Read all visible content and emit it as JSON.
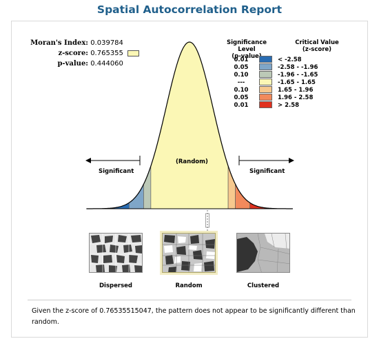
{
  "report": {
    "title": "Spatial Autocorrelation Report",
    "stats": [
      {
        "label": "Moran's Index:",
        "value": "0.039784"
      },
      {
        "label": "z-score:",
        "value": "0.765355"
      },
      {
        "label": "p-value:",
        "value": "0.444060"
      }
    ],
    "summary": "Given the z-score of 0.76535515047, the pattern does not appear to be significantly different than random."
  },
  "legend": {
    "sig_header_line1": "Significance Level",
    "sig_header_line2": "(p-value)",
    "cv_header_line1": "Critical Value",
    "cv_header_line2": "(z-score)",
    "rows": [
      {
        "p": "0.01",
        "cv": "< -2.58",
        "color": "#2a6db3"
      },
      {
        "p": "0.05",
        "cv": "-2.58 - -1.96",
        "color": "#7fa6c8"
      },
      {
        "p": "0.10",
        "cv": "-1.96 - -1.65",
        "color": "#bcc9b7"
      },
      {
        "p": "---",
        "cv": "-1.65 - 1.65",
        "color": "#fbf7b5"
      },
      {
        "p": "0.10",
        "cv": "1.65 - 1.96",
        "color": "#f7c98e"
      },
      {
        "p": "0.05",
        "cv": "1.96 - 2.58",
        "color": "#f28a5c"
      },
      {
        "p": "0.01",
        "cv": "> 2.58",
        "color": "#e0311f"
      }
    ]
  },
  "curve": {
    "left_label": "Significant",
    "center_label": "(Random)",
    "right_label": "Significant",
    "z_score": 0.765355
  },
  "patterns": [
    {
      "caption": "Dispersed"
    },
    {
      "caption": "Random"
    },
    {
      "caption": "Clustered"
    }
  ]
}
